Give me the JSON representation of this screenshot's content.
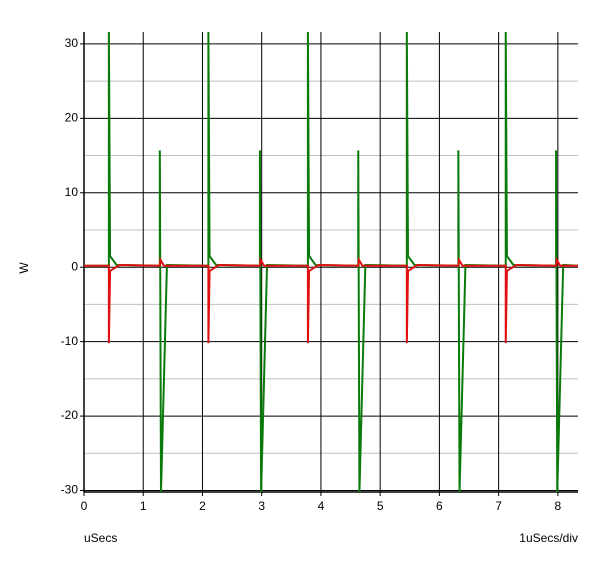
{
  "chart_data": {
    "type": "line",
    "ylabel": "W",
    "xlabel": "uSecs",
    "xscale_label": "1uSecs/div",
    "xlim": [
      0,
      8.34
    ],
    "ylim": [
      -30.2,
      31.6
    ],
    "xticks": [
      0,
      1,
      2,
      3,
      4,
      5,
      6,
      7,
      8
    ],
    "yticks": [
      -30,
      -20,
      -10,
      0,
      10,
      20,
      30
    ],
    "yminorticks": [
      -25,
      -15,
      -5,
      5,
      15,
      25
    ],
    "grid": true,
    "series": [
      {
        "name": "green",
        "color": "#0a7a0a",
        "x": [
          0,
          0.42,
          0.42,
          0.44,
          0.55,
          1.28,
          1.28,
          1.3,
          1.4,
          2.1,
          2.1,
          2.12,
          2.23,
          2.97,
          2.97,
          2.99,
          3.09,
          3.78,
          3.78,
          3.8,
          3.91,
          4.63,
          4.63,
          4.65,
          4.75,
          5.45,
          5.45,
          5.47,
          5.58,
          6.32,
          6.32,
          6.34,
          6.44,
          7.12,
          7.12,
          7.14,
          7.25,
          7.97,
          7.97,
          7.99,
          8.09,
          8.34
        ],
        "values": [
          0.2,
          0.2,
          31.6,
          1.5,
          0.3,
          0.2,
          15.7,
          -30.2,
          0.3,
          0.2,
          31.6,
          1.5,
          0.3,
          0.2,
          15.7,
          -30.2,
          0.3,
          0.2,
          31.6,
          1.5,
          0.3,
          0.2,
          15.7,
          -30.2,
          0.3,
          0.2,
          31.6,
          1.5,
          0.3,
          0.2,
          15.7,
          -30.2,
          0.3,
          0.2,
          31.6,
          1.5,
          0.3,
          0.2,
          15.7,
          -30.2,
          0.3,
          0.2
        ]
      },
      {
        "name": "red",
        "color": "#e01010",
        "x": [
          0,
          0.42,
          0.42,
          0.44,
          0.6,
          1.28,
          1.29,
          1.35,
          2.1,
          2.1,
          2.12,
          2.28,
          2.97,
          2.98,
          3.04,
          3.78,
          3.78,
          3.8,
          3.96,
          4.63,
          4.64,
          4.7,
          5.45,
          5.45,
          5.47,
          5.63,
          6.32,
          6.33,
          6.39,
          7.12,
          7.12,
          7.14,
          7.3,
          7.97,
          7.98,
          8.04,
          8.34
        ],
        "values": [
          0.2,
          0.2,
          -10.2,
          -0.5,
          0.3,
          0.2,
          1.0,
          0.2,
          0.2,
          -10.2,
          -0.5,
          0.3,
          0.2,
          1.0,
          0.2,
          0.2,
          -10.2,
          -0.5,
          0.3,
          0.2,
          1.0,
          0.2,
          0.2,
          -10.2,
          -0.5,
          0.3,
          0.2,
          1.0,
          0.2,
          0.2,
          -10.2,
          -0.5,
          0.3,
          0.2,
          1.0,
          0.2,
          0.2
        ]
      }
    ]
  }
}
